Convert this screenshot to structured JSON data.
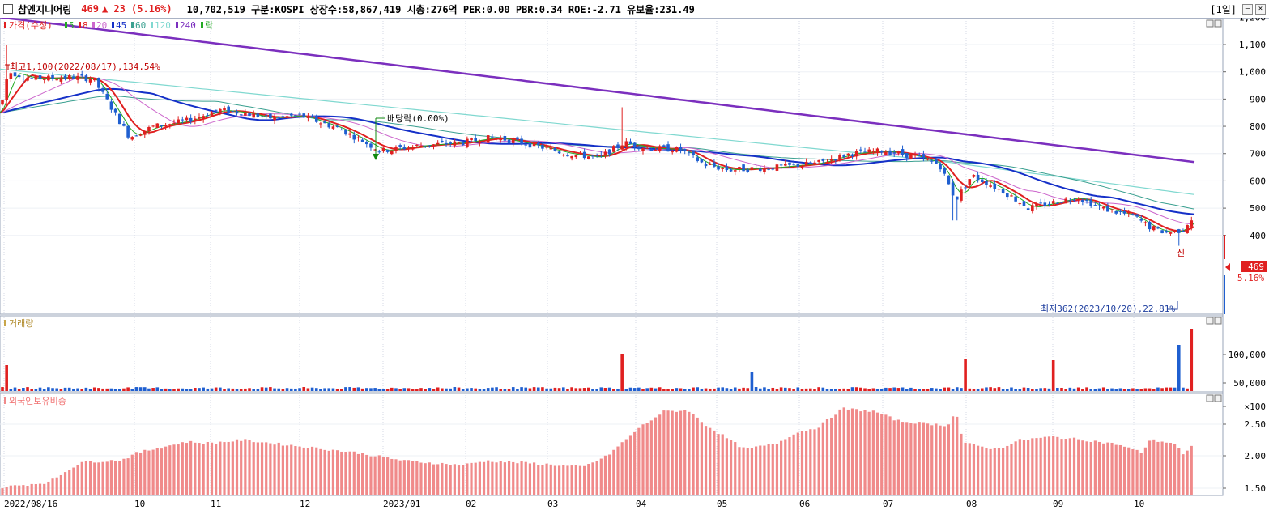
{
  "header": {
    "stock_name": "참엔지니어링",
    "price": "469",
    "change": "▲ 23 (5.16%)",
    "info": "10,702,519  구분:KOSPI 상장수:58,867,419 시총:276억 PER:0.00 PBR:0.34 ROE:-2.71 유보율:231.49",
    "period": "[1일]",
    "min_icon": "minimize-icon",
    "close_icon": "close-icon"
  },
  "price_legend": {
    "label": "가격(수정)",
    "items": [
      {
        "label": "5",
        "color": "#22aa22"
      },
      {
        "label": "8",
        "color": "#e02020"
      },
      {
        "label": "20",
        "color": "#cc66cc"
      },
      {
        "label": "45",
        "color": "#1530c8"
      },
      {
        "label": "60",
        "color": "#3aa090"
      },
      {
        "label": "120",
        "color": "#80d8d0"
      },
      {
        "label": "240",
        "color": "#7b2fbe"
      },
      {
        "label": "락",
        "color": "#22aa22"
      }
    ]
  },
  "annotations": {
    "high": "최고1,100(2022/08/17),134.54%",
    "low": "최저362(2023/10/20),22.81%",
    "dividend": "배당락(0.00%)",
    "shin": "신"
  },
  "price_axis": [
    "1,200",
    "1,100",
    "1,000",
    "900",
    "800",
    "700",
    "600",
    "500",
    "400"
  ],
  "last_price_tag": "469",
  "last_change_tag": "5.16%",
  "volume_panel": {
    "label": "거래량",
    "axis": [
      "100,000",
      "50,000",
      "×100"
    ]
  },
  "foreign_panel": {
    "label": "외국인보유비중",
    "axis": [
      "2.50",
      "2.00",
      "1.50"
    ]
  },
  "x_axis": [
    "2022/08/16",
    "10",
    "11",
    "12",
    "2023/01",
    "02",
    "03",
    "04",
    "05",
    "06",
    "07",
    "08",
    "09",
    "10"
  ],
  "colors": {
    "up": "#e02020",
    "down": "#1f5fd0",
    "grid": "#c8ccd8",
    "foreign": "#f08a8a"
  }
}
